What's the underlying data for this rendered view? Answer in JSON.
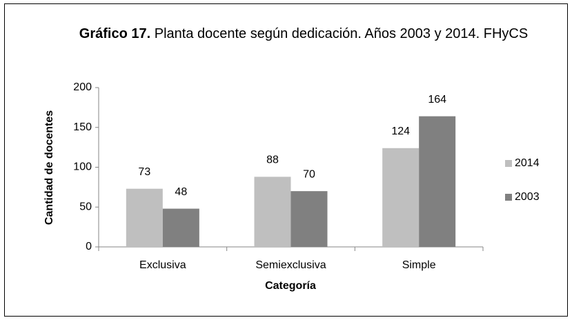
{
  "chart_data": {
    "type": "bar",
    "title_prefix": "Gráfico 17.",
    "title": "Planta docente según dedicación. Años 2003 y 2014. FHyCS",
    "x_label": "Categoría",
    "y_label": "Cantidad de docentes",
    "categories": [
      "Exclusiva",
      "Semiexclusiva",
      "Simple"
    ],
    "series": [
      {
        "name": "2014",
        "color": "#bfbfbf",
        "values": [
          73,
          88,
          124
        ]
      },
      {
        "name": "2003",
        "color": "#808080",
        "values": [
          48,
          70,
          164
        ]
      }
    ],
    "ylim": [
      0,
      200
    ],
    "yticks": [
      0,
      50,
      100,
      150,
      200
    ],
    "grid": false,
    "legend": "right",
    "data_labels": true
  }
}
